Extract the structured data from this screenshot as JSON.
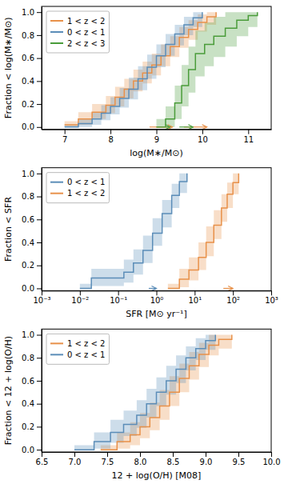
{
  "chart_data": [
    {
      "type": "step",
      "x_label": "log(M∗/M⊙)",
      "y_label": "Fraction < log(M∗/M⊙)",
      "xlim": [
        6.5,
        11.5
      ],
      "ylim": [
        -0.02,
        1.05
      ],
      "xticks": [
        7,
        8,
        9,
        10,
        11
      ],
      "yticks": [
        {
          "value": 0.0,
          "label": "0.0"
        },
        0.2,
        0.4,
        0.6,
        0.8,
        {
          "value": 1.0,
          "label": "1.0"
        }
      ],
      "legend": "upper left",
      "grid": false,
      "series": [
        {
          "name": "1 < z < 2",
          "color": "#e8914a",
          "x": [
            7.0,
            7.3,
            7.6,
            7.9,
            8.1,
            8.3,
            8.5,
            8.7,
            8.9,
            9.1,
            9.3,
            9.5,
            9.7,
            9.9,
            10.1,
            10.3
          ],
          "values": [
            0.02,
            0.07,
            0.13,
            0.19,
            0.26,
            0.33,
            0.4,
            0.47,
            0.54,
            0.62,
            0.7,
            0.78,
            0.85,
            0.91,
            0.96,
            1.0
          ],
          "lo": [
            0.0,
            0.02,
            0.07,
            0.12,
            0.18,
            0.25,
            0.31,
            0.38,
            0.45,
            0.53,
            0.61,
            0.69,
            0.76,
            0.83,
            0.89,
            1.0
          ],
          "hi": [
            0.05,
            0.13,
            0.2,
            0.27,
            0.35,
            0.42,
            0.5,
            0.57,
            0.64,
            0.72,
            0.79,
            0.87,
            0.93,
            0.98,
            1.0,
            1.0
          ],
          "upper_limits": [
            {
              "x": [
                8.85,
                9.35
              ],
              "y": 0.0
            },
            {
              "x": [
                9.6,
                10.1
              ],
              "y": 0.0
            }
          ]
        },
        {
          "name": "0 < z < 1",
          "color": "#5b8db8",
          "x": [
            7.0,
            7.3,
            7.6,
            7.8,
            8.0,
            8.2,
            8.4,
            8.6,
            8.8,
            9.0,
            9.2,
            9.4,
            9.6,
            9.8,
            10.0
          ],
          "values": [
            0.0,
            0.03,
            0.07,
            0.12,
            0.18,
            0.25,
            0.33,
            0.42,
            0.52,
            0.62,
            0.72,
            0.81,
            0.89,
            0.95,
            1.0
          ],
          "lo": [
            0.0,
            0.0,
            0.02,
            0.06,
            0.11,
            0.17,
            0.24,
            0.32,
            0.42,
            0.52,
            0.62,
            0.71,
            0.8,
            0.87,
            1.0
          ],
          "hi": [
            0.02,
            0.07,
            0.13,
            0.19,
            0.26,
            0.34,
            0.43,
            0.53,
            0.63,
            0.72,
            0.81,
            0.89,
            0.96,
            1.0,
            1.0
          ]
        },
        {
          "name": "2 < z < 3",
          "color": "#4a9c3a",
          "x": [
            9.0,
            9.2,
            9.4,
            9.55,
            9.7,
            9.85,
            10.05,
            10.25,
            10.5,
            10.75,
            11.0,
            11.2
          ],
          "values": [
            0.0,
            0.07,
            0.21,
            0.36,
            0.5,
            0.64,
            0.72,
            0.79,
            0.86,
            0.93,
            0.97,
            1.0
          ],
          "lo": [
            0.0,
            0.0,
            0.07,
            0.18,
            0.3,
            0.44,
            0.53,
            0.61,
            0.7,
            0.79,
            0.87,
            1.0
          ],
          "hi": [
            0.07,
            0.18,
            0.36,
            0.54,
            0.7,
            0.84,
            0.91,
            0.96,
            1.0,
            1.0,
            1.0,
            1.0
          ],
          "upper_limits": [
            {
              "x": [
                9.0,
                9.3
              ],
              "y": 0.0
            },
            {
              "x": [
                9.5,
                9.8
              ],
              "y": 0.0
            }
          ]
        }
      ]
    },
    {
      "type": "step",
      "x_label": "SFR [M⊙ yr⁻¹]",
      "y_label": "Fraction < SFR",
      "log": "x",
      "xlim": [
        0.001,
        1000
      ],
      "ylim": [
        -0.02,
        1.05
      ],
      "xticks": [
        {
          "value": 0.001,
          "label": "10⁻³"
        },
        {
          "value": 0.01,
          "label": "10⁻²"
        },
        {
          "value": 0.1,
          "label": "10⁻¹"
        },
        {
          "value": 1,
          "label": "10⁰"
        },
        {
          "value": 10,
          "label": "10¹"
        },
        {
          "value": 100,
          "label": "10²"
        },
        {
          "value": 1000,
          "label": "10³"
        }
      ],
      "yticks": [
        {
          "value": 0.0,
          "label": "0.0"
        },
        0.2,
        0.4,
        0.6,
        0.8,
        {
          "value": 1.0,
          "label": "1.0"
        }
      ],
      "legend": "upper left",
      "grid": false,
      "series": [
        {
          "name": "0 < z < 1",
          "color": "#5b8db8",
          "x": [
            0.01,
            0.0199526231496888,
            0.0398107170553497,
            0.0794328234724281,
            0.141253754462275,
            0.251188643150958,
            0.446683592150963,
            0.794328234724281,
            1.41253754462275,
            2.51188643150958,
            3.98107170553497,
            6.30957344480193
          ],
          "values": [
            0.0,
            0.09,
            0.09,
            0.09,
            0.14,
            0.22,
            0.33,
            0.48,
            0.65,
            0.81,
            0.93,
            1.0
          ],
          "lo": [
            0.0,
            0.02,
            0.02,
            0.02,
            0.05,
            0.12,
            0.22,
            0.37,
            0.53,
            0.7,
            0.83,
            1.0
          ],
          "hi": [
            0.04,
            0.17,
            0.17,
            0.17,
            0.25,
            0.34,
            0.46,
            0.61,
            0.77,
            0.91,
            1.0,
            1.0
          ],
          "upper_limits": [
            {
              "x": [
                0.630957344480193,
                1
              ],
              "y": 0.0
            }
          ]
        },
        {
          "name": "1 < z < 2",
          "color": "#e8914a",
          "x": [
            1.99526231496888,
            3.98107170553497,
            7.07945784384138,
            12.5892541179417,
            19.9526231496888,
            31.6227766016838,
            50.1187233627272,
            70.7945784384138,
            100,
            141.253754462275
          ],
          "values": [
            0.0,
            0.08,
            0.16,
            0.27,
            0.4,
            0.55,
            0.7,
            0.82,
            0.92,
            1.0
          ],
          "lo": [
            0.0,
            0.01,
            0.07,
            0.16,
            0.28,
            0.43,
            0.58,
            0.7,
            0.82,
            1.0
          ],
          "hi": [
            0.04,
            0.17,
            0.27,
            0.4,
            0.54,
            0.68,
            0.82,
            0.92,
            1.0,
            1.0
          ],
          "upper_limits": [
            {
              "x": [
                56.2341325190349,
                100
              ],
              "y": 0.0
            }
          ]
        }
      ]
    },
    {
      "type": "step",
      "x_label": "12 + log(O/H) [M08]",
      "y_label": "Fraction < 12 + log(O/H)",
      "xlim": [
        6.5,
        10.0
      ],
      "ylim": [
        -0.02,
        1.05
      ],
      "xticks": [
        6.5,
        {
          "value": 7.0,
          "label": "7.0"
        },
        7.5,
        {
          "value": 8.0,
          "label": "8.0"
        },
        8.5,
        {
          "value": 9.0,
          "label": "9.0"
        },
        9.5,
        {
          "value": 10.0,
          "label": "10.0"
        }
      ],
      "yticks": [
        {
          "value": 0.0,
          "label": "0.0"
        },
        0.2,
        0.4,
        0.6,
        0.8,
        {
          "value": 1.0,
          "label": "1.0"
        }
      ],
      "legend": "upper left",
      "grid": false,
      "series": [
        {
          "name": "1 < z < 2",
          "color": "#e8914a",
          "x": [
            7.4,
            7.65,
            7.85,
            8.0,
            8.15,
            8.3,
            8.45,
            8.6,
            8.75,
            8.9,
            9.05,
            9.2,
            9.4
          ],
          "values": [
            0.0,
            0.07,
            0.13,
            0.2,
            0.28,
            0.38,
            0.5,
            0.62,
            0.73,
            0.83,
            0.91,
            0.96,
            1.0
          ],
          "lo": [
            0.0,
            0.01,
            0.04,
            0.1,
            0.17,
            0.26,
            0.38,
            0.5,
            0.61,
            0.72,
            0.82,
            0.88,
            1.0
          ],
          "hi": [
            0.04,
            0.15,
            0.24,
            0.32,
            0.41,
            0.52,
            0.64,
            0.75,
            0.85,
            0.93,
            1.0,
            1.0,
            1.0
          ]
        },
        {
          "name": "0 < z < 1",
          "color": "#5b8db8",
          "x": [
            7.0,
            7.3,
            7.55,
            7.75,
            7.95,
            8.1,
            8.25,
            8.4,
            8.55,
            8.7,
            8.85,
            9.0,
            9.15
          ],
          "values": [
            0.0,
            0.07,
            0.15,
            0.22,
            0.3,
            0.4,
            0.5,
            0.6,
            0.7,
            0.8,
            0.88,
            0.95,
            1.0
          ],
          "lo": [
            0.0,
            0.01,
            0.06,
            0.12,
            0.19,
            0.28,
            0.38,
            0.48,
            0.58,
            0.69,
            0.78,
            0.87,
            1.0
          ],
          "hi": [
            0.04,
            0.15,
            0.26,
            0.34,
            0.43,
            0.53,
            0.63,
            0.73,
            0.82,
            0.9,
            0.97,
            1.0,
            1.0
          ]
        }
      ]
    }
  ]
}
